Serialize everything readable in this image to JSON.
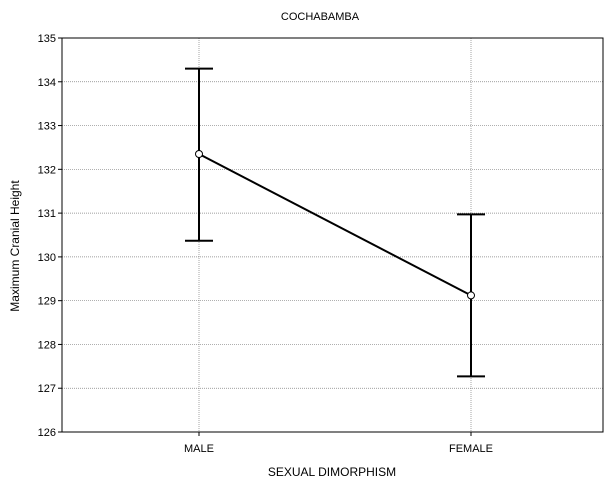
{
  "chart_data": {
    "type": "line",
    "title": "COCHABAMBA",
    "xlabel": "SEXUAL DIMORPHISM",
    "ylabel": "Maximum Cranial Height",
    "categories": [
      "MALE",
      "FEMALE"
    ],
    "ylim": [
      126,
      135
    ],
    "yticks": [
      126,
      127,
      128,
      129,
      130,
      131,
      132,
      133,
      134,
      135
    ],
    "grid": true,
    "series": [
      {
        "means": [
          132.35,
          129.12
        ],
        "lower": [
          130.37,
          127.27
        ],
        "upper": [
          134.3,
          130.97
        ]
      }
    ]
  }
}
